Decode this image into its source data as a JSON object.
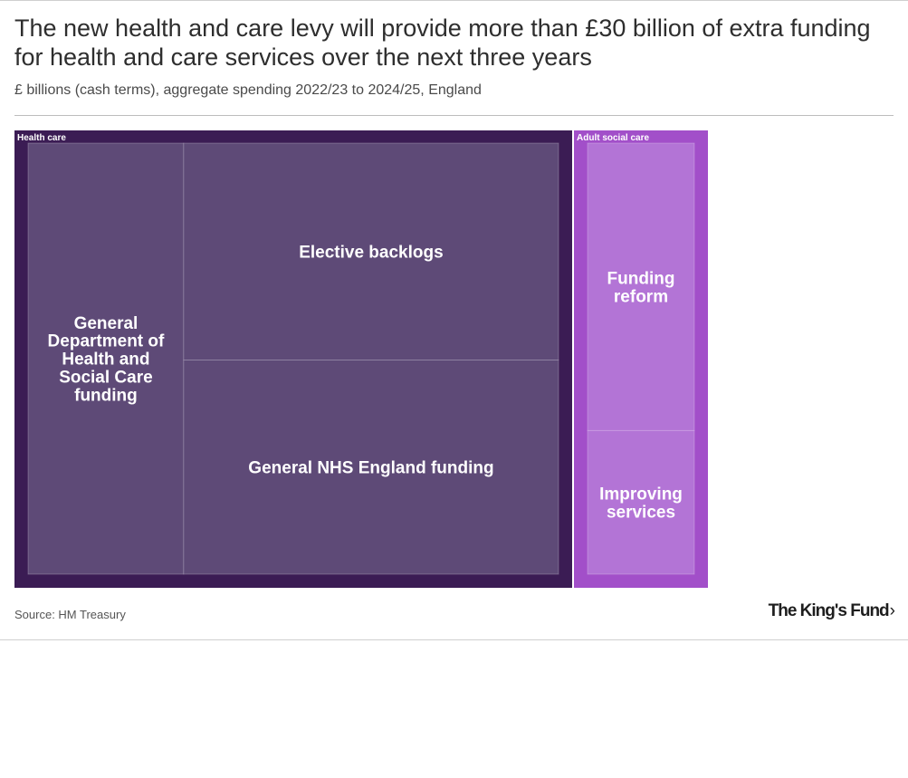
{
  "title": "The new health and care levy will provide more than £30 billion of extra funding for health and care services over the next three years",
  "subtitle": "£ billions (cash terms), aggregate spending 2022/23 to 2024/25, England",
  "source": "Source: HM Treasury",
  "logo": {
    "text": "The King's Fund",
    "icon": "chevron-right-icon"
  },
  "chart_data": {
    "type": "treemap",
    "groups": [
      {
        "name": "Health care",
        "color": "#3b1c54",
        "tile_color": "#5e4a77",
        "children": [
          {
            "name": "General Department of Health and Social Care funding",
            "value": 6.6
          },
          {
            "name": "Elective backlogs",
            "value": 8.0
          },
          {
            "name": "General NHS England funding",
            "value": 7.9
          }
        ]
      },
      {
        "name": "Adult social care",
        "color": "#a24fc9",
        "tile_color": "#b374d6",
        "children": [
          {
            "name": "Funding reform",
            "value": 3.6
          },
          {
            "name": "Improving services",
            "value": 1.8
          }
        ]
      }
    ]
  }
}
